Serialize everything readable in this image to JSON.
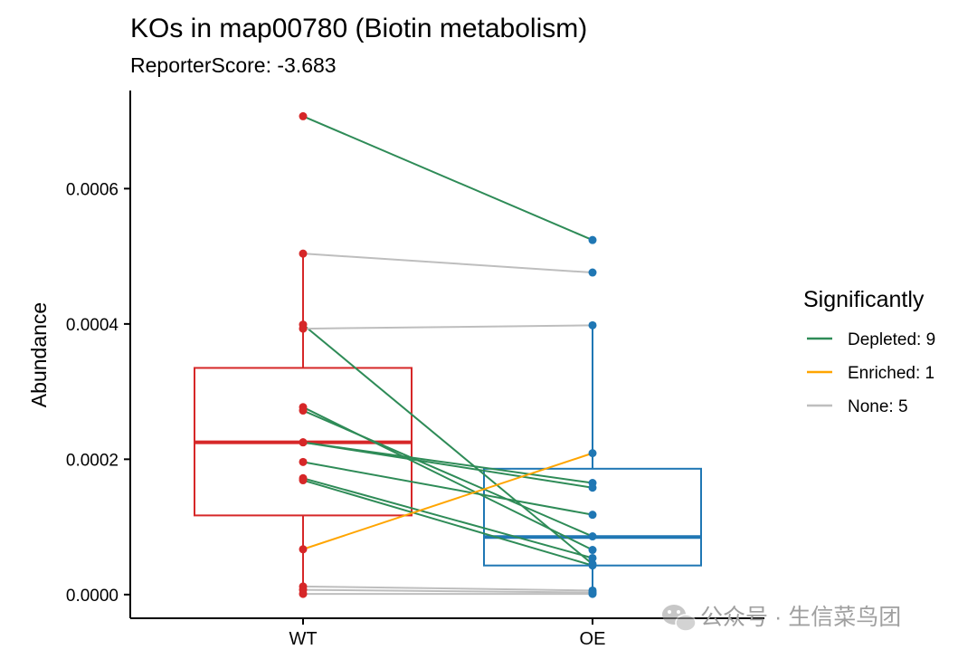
{
  "chart_data": {
    "type": "box-paired",
    "title": "KOs in map00780 (Biotin metabolism)",
    "subtitle": "ReporterScore: -3.683",
    "xlabel": "",
    "ylabel": "Abundance",
    "ylim": [
      -3.5e-05,
      0.000745
    ],
    "yticks": [
      0.0,
      0.0002,
      0.0004,
      0.0006
    ],
    "ytick_labels": [
      "0.0000",
      "0.0002",
      "0.0004",
      "0.0006"
    ],
    "categories": [
      "WT",
      "OE"
    ],
    "group_colors": {
      "WT": "#d62728",
      "OE": "#1f77b4"
    },
    "boxes": [
      {
        "group": "WT",
        "q1": 0.000117,
        "median": 0.000225,
        "q3": 0.000335,
        "whisker_low": 0.0,
        "whisker_high": 0.000504
      },
      {
        "group": "OE",
        "q1": 4.3e-05,
        "median": 8.5e-05,
        "q3": 0.000186,
        "whisker_low": 0.0,
        "whisker_high": 0.000398
      }
    ],
    "legend_title": "Significantly",
    "legend": [
      {
        "key": "Depleted",
        "label": "Depleted: 9",
        "color": "#2e8b57"
      },
      {
        "key": "Enriched",
        "label": "Enriched: 1",
        "color": "#ffa500"
      },
      {
        "key": "None",
        "label": "None: 5",
        "color": "#bebebe"
      }
    ],
    "series": [
      {
        "wt": 0.000707,
        "oe": 0.000524,
        "sig": "Depleted"
      },
      {
        "wt": 0.000504,
        "oe": 0.000476,
        "sig": "None"
      },
      {
        "wt": 0.000399,
        "oe": 4.5e-05,
        "sig": "Depleted"
      },
      {
        "wt": 0.000393,
        "oe": 0.000398,
        "sig": "None"
      },
      {
        "wt": 0.000277,
        "oe": 6.6e-05,
        "sig": "Depleted"
      },
      {
        "wt": 0.000272,
        "oe": 8.6e-05,
        "sig": "Depleted"
      },
      {
        "wt": 0.000225,
        "oe": 0.000165,
        "sig": "Depleted"
      },
      {
        "wt": 0.000225,
        "oe": 0.000158,
        "sig": "Depleted"
      },
      {
        "wt": 0.000196,
        "oe": 0.000118,
        "sig": "Depleted"
      },
      {
        "wt": 0.000172,
        "oe": 5.4e-05,
        "sig": "Depleted"
      },
      {
        "wt": 0.000169,
        "oe": 4.3e-05,
        "sig": "Depleted"
      },
      {
        "wt": 6.7e-05,
        "oe": 0.000209,
        "sig": "Enriched"
      },
      {
        "wt": 1.2e-05,
        "oe": 6e-06,
        "sig": "None"
      },
      {
        "wt": 7e-06,
        "oe": 3e-06,
        "sig": "None"
      },
      {
        "wt": 1e-06,
        "oe": 1e-06,
        "sig": "None"
      }
    ],
    "grid": false,
    "legend_position": "right"
  },
  "watermark": {
    "text": "公众号 · 生信菜鸟团",
    "icon": "wechat-icon"
  }
}
